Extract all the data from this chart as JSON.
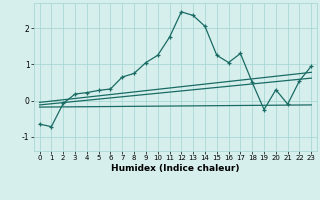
{
  "xlabel": "Humidex (Indice chaleur)",
  "ylabel": "",
  "xlim": [
    -0.5,
    23.5
  ],
  "ylim": [
    -1.4,
    2.7
  ],
  "bg_color": "#d6efed",
  "grid_color": "#a8d8d4",
  "line_color": "#1a6b64",
  "line1_x": [
    0,
    1,
    2,
    3,
    4,
    5,
    6,
    7,
    8,
    9,
    10,
    11,
    12,
    13,
    14,
    15,
    16,
    17,
    18,
    19,
    20,
    21,
    22,
    23
  ],
  "line1_y": [
    -0.65,
    -0.72,
    -0.08,
    0.18,
    0.22,
    0.28,
    0.32,
    0.65,
    0.75,
    1.05,
    1.25,
    1.75,
    2.45,
    2.35,
    2.05,
    1.25,
    1.05,
    1.3,
    0.5,
    -0.25,
    0.3,
    -0.1,
    0.55,
    0.95
  ],
  "line2_x": [
    0,
    23
  ],
  "line2_y": [
    -0.05,
    0.78
  ],
  "line3_x": [
    0,
    23
  ],
  "line3_y": [
    -0.12,
    0.62
  ],
  "line4_x": [
    0,
    23
  ],
  "line4_y": [
    -0.18,
    -0.12
  ],
  "yticks": [
    -1,
    0,
    1,
    2
  ],
  "xticks": [
    0,
    1,
    2,
    3,
    4,
    5,
    6,
    7,
    8,
    9,
    10,
    11,
    12,
    13,
    14,
    15,
    16,
    17,
    18,
    19,
    20,
    21,
    22,
    23
  ]
}
